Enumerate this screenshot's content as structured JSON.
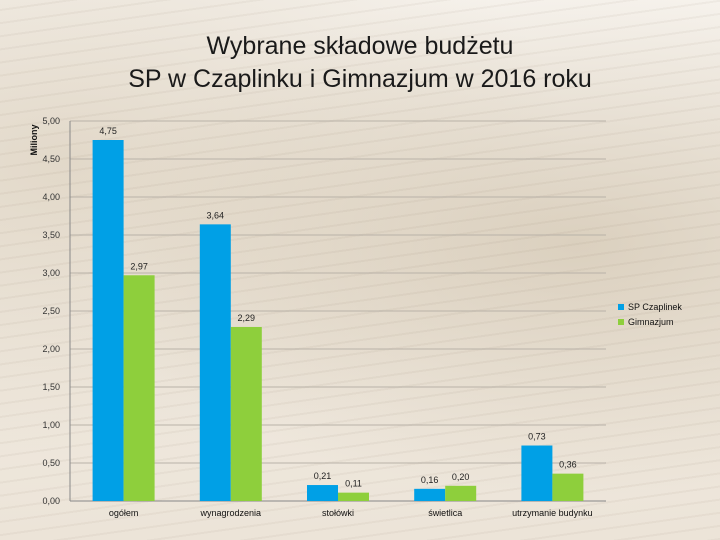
{
  "title_line1": "Wybrane składowe budżetu",
  "title_line2": "SP w Czaplinku i Gimnazjum w 2016 roku",
  "chart_data": {
    "type": "bar",
    "ylabel": "Miliony",
    "ylim": [
      0,
      5
    ],
    "ytick_labels": [
      "0,00",
      "0,50",
      "1,00",
      "1,50",
      "2,00",
      "2,50",
      "3,00",
      "3,50",
      "4,00",
      "4,50",
      "5,00"
    ],
    "categories": [
      "ogółem",
      "wynagrodzenia",
      "stołówki",
      "świetlica",
      "utrzymanie budynku"
    ],
    "series": [
      {
        "name": "SP Czaplinek",
        "color": "#00a0e6",
        "values": [
          4.75,
          3.64,
          0.21,
          0.16,
          0.73
        ],
        "labels": [
          "4,75",
          "3,64",
          "0,21",
          "0,16",
          "0,73"
        ]
      },
      {
        "name": "Gimnazjum",
        "color": "#8ecf3c",
        "values": [
          2.97,
          2.29,
          0.11,
          0.2,
          0.36
        ],
        "labels": [
          "2,97",
          "2,29",
          "0,11",
          "0,20",
          "0,36"
        ]
      }
    ],
    "legend_position": "right",
    "grid": true
  }
}
